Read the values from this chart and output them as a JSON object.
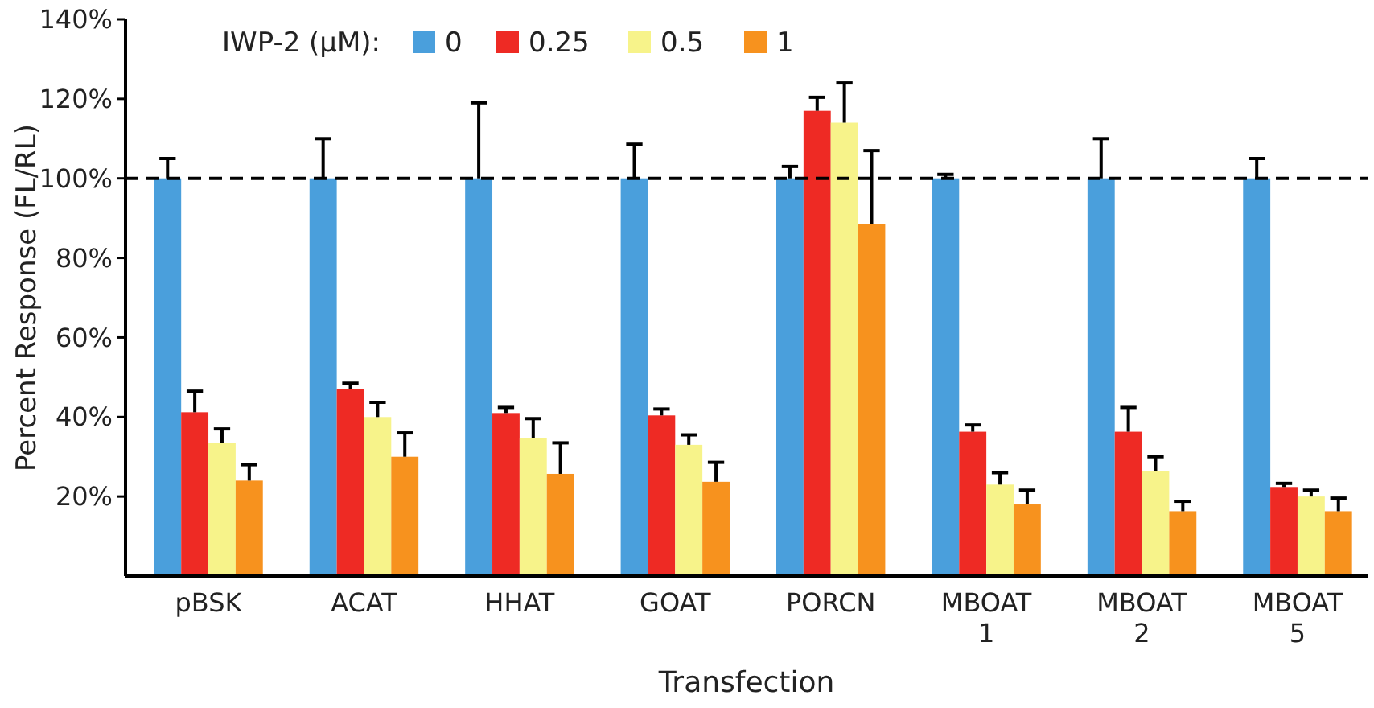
{
  "chart_data": {
    "type": "bar",
    "xlabel": "Transfection",
    "ylabel": "Percent Response (FL/RL)",
    "legend_title": "IWP-2 (μM):",
    "legend": "top",
    "categories": [
      "pBSK",
      "ACAT",
      "HHAT",
      "GOAT",
      "PORCN",
      "MBOAT\n1",
      "MBOAT\n2",
      "MBOAT\n5"
    ],
    "series": [
      {
        "name": "0",
        "color": "#4a9fdc",
        "values": [
          100,
          100,
          100,
          100,
          100,
          100,
          100,
          100
        ],
        "errors": [
          [
            100,
            105
          ],
          [
            100,
            110
          ],
          [
            100,
            119
          ],
          [
            100,
            108.6
          ],
          [
            100,
            103
          ],
          [
            100,
            101
          ],
          [
            100,
            110
          ],
          [
            100,
            105
          ]
        ]
      },
      {
        "name": "0.25",
        "color": "#ee2a24",
        "values": [
          41.2,
          47,
          41,
          40.4,
          117,
          36.3,
          36.3,
          22.4
        ],
        "errors": [
          [
            41.2,
            46.5
          ],
          [
            47,
            48.5
          ],
          [
            41,
            42.4
          ],
          [
            40.4,
            42
          ],
          [
            117,
            120.4
          ],
          [
            36.3,
            38
          ],
          [
            36.3,
            42.4
          ],
          [
            22.4,
            23.3
          ]
        ]
      },
      {
        "name": "0.5",
        "color": "#f7f38a",
        "values": [
          33.5,
          40,
          34.7,
          33,
          114,
          23,
          26.5,
          20
        ],
        "errors": [
          [
            33.5,
            37
          ],
          [
            40,
            43.7
          ],
          [
            34.7,
            39.6
          ],
          [
            33,
            35.5
          ],
          [
            114,
            124
          ],
          [
            23,
            26
          ],
          [
            26.5,
            30
          ],
          [
            20,
            21.6
          ]
        ]
      },
      {
        "name": "1",
        "color": "#f7921e",
        "values": [
          24,
          30,
          25.7,
          23.7,
          88.6,
          18,
          16.3,
          16.3
        ],
        "errors": [
          [
            24,
            28
          ],
          [
            30,
            36
          ],
          [
            25.7,
            33.5
          ],
          [
            23.7,
            28.6
          ],
          [
            88.6,
            107
          ],
          [
            18,
            21.6
          ],
          [
            16.3,
            18.8
          ],
          [
            16.3,
            19.6
          ]
        ]
      }
    ],
    "ylim": [
      0,
      140
    ],
    "yticks": [
      {
        "value": 20,
        "label": "20%"
      },
      {
        "value": 40,
        "label": "40%"
      },
      {
        "value": 60,
        "label": "60%"
      },
      {
        "value": 80,
        "label": "80%"
      },
      {
        "value": 100,
        "label": "100%"
      },
      {
        "value": 120,
        "label": "120%"
      },
      {
        "value": 140,
        "label": "140%"
      }
    ],
    "ref_lines": [
      {
        "axis": "y",
        "value": 100,
        "color": "#000000",
        "line_style": "dashed"
      }
    ]
  }
}
